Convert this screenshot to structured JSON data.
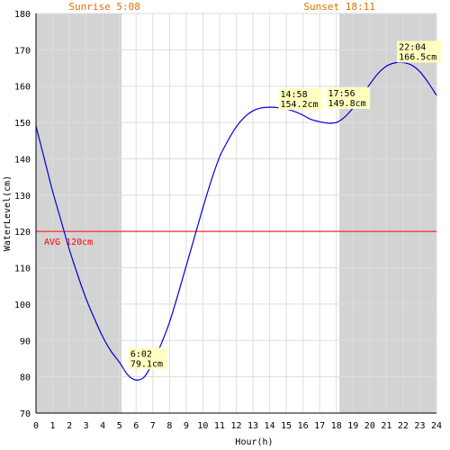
{
  "chart_data": {
    "type": "line",
    "xlabel": "Hour(h)",
    "ylabel": "WaterLevel(cm)",
    "xlim": [
      0,
      24
    ],
    "ylim": [
      70,
      180
    ],
    "x_ticks": [
      0,
      1,
      2,
      3,
      4,
      5,
      6,
      7,
      8,
      9,
      10,
      11,
      12,
      13,
      14,
      15,
      16,
      17,
      18,
      19,
      20,
      21,
      22,
      23,
      24
    ],
    "y_ticks": [
      70,
      80,
      90,
      100,
      110,
      120,
      130,
      140,
      150,
      160,
      170,
      180
    ],
    "grid": true,
    "sunrise": {
      "label": "Sunrise 5:08",
      "hour": 5.133
    },
    "sunset": {
      "label": "Sunset 18:11",
      "hour": 18.183
    },
    "average": {
      "label": "AVG 120cm",
      "value": 120
    },
    "colors": {
      "line": "#0000dd",
      "night": "#d3d3d3",
      "avg": "#ff0000",
      "sun_text": "#e07000",
      "annotation_bg": "#ffffc0",
      "grid": "#dddddd"
    },
    "series": [
      {
        "x": [
          0,
          0.5,
          1,
          1.5,
          2,
          2.5,
          3,
          3.5,
          4,
          4.5,
          5,
          5.5,
          6,
          6.5,
          7,
          7.5,
          8,
          8.5,
          9,
          9.5,
          10,
          10.5,
          11,
          11.5,
          12,
          12.5,
          13,
          13.5,
          14,
          14.5,
          15,
          15.5,
          16,
          16.5,
          17,
          17.5,
          18,
          18.5,
          19,
          19.5,
          20,
          20.5,
          21,
          21.5,
          22,
          22.5,
          23,
          23.5,
          24
        ],
        "y": [
          149,
          140,
          131,
          123,
          115,
          108,
          101.5,
          96,
          91,
          87,
          84,
          80.5,
          79.1,
          80,
          84,
          89,
          95,
          102.5,
          110.5,
          118.5,
          126.5,
          134,
          140.5,
          145,
          148.8,
          151.5,
          153.2,
          154,
          154.2,
          154.1,
          153.7,
          153,
          152,
          150.8,
          150.2,
          149.8,
          150,
          151.5,
          154,
          157,
          160.5,
          163.5,
          165.5,
          166.4,
          166.5,
          165.8,
          164,
          161,
          157.5
        ]
      }
    ],
    "annotations": [
      {
        "time": "6:02",
        "value": "79.1cm",
        "hour": 6.033,
        "level": 79.1
      },
      {
        "time": "14:58",
        "value": "154.2cm",
        "hour": 14.967,
        "level": 154.2
      },
      {
        "time": "17:56",
        "value": "149.8cm",
        "hour": 17.933,
        "level": 149.8
      },
      {
        "time": "22:04",
        "value": "166.5cm",
        "hour": 22.067,
        "level": 166.5
      }
    ]
  }
}
